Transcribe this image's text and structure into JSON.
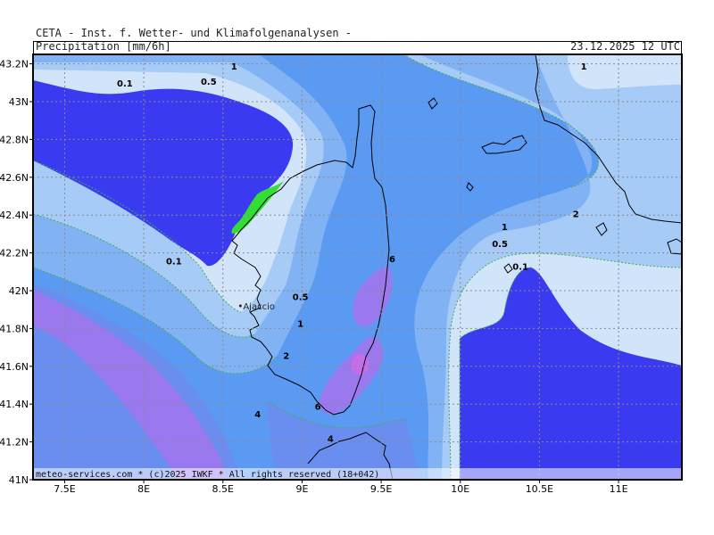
{
  "header": {
    "title": "CETA - Inst. f. Wetter- und Klimafolgenanalysen -",
    "product": "Precipitation [mm/6h]",
    "valid_time": "23.12.2025 12 UTC"
  },
  "axes": {
    "lon_min": 7.3,
    "lon_max": 11.4,
    "lat_min": 41.0,
    "lat_max": 43.25,
    "lon_ticks": [
      {
        "value": 7.5,
        "label": "7.5E"
      },
      {
        "value": 8.0,
        "label": "8E"
      },
      {
        "value": 8.5,
        "label": "8.5E"
      },
      {
        "value": 9.0,
        "label": "9E"
      },
      {
        "value": 9.5,
        "label": "9.5E"
      },
      {
        "value": 10.0,
        "label": "10E"
      },
      {
        "value": 10.5,
        "label": "10.5E"
      },
      {
        "value": 11.0,
        "label": "11E"
      }
    ],
    "lat_ticks": [
      {
        "value": 43.2,
        "label": "43.2N"
      },
      {
        "value": 43.0,
        "label": "43N"
      },
      {
        "value": 42.8,
        "label": "42.8N"
      },
      {
        "value": 42.6,
        "label": "42.6N"
      },
      {
        "value": 42.4,
        "label": "42.4N"
      },
      {
        "value": 42.2,
        "label": "42.2N"
      },
      {
        "value": 42.0,
        "label": "42N"
      },
      {
        "value": 41.8,
        "label": "41.8N"
      },
      {
        "value": 41.6,
        "label": "41.6N"
      },
      {
        "value": 41.4,
        "label": "41.4N"
      },
      {
        "value": 41.2,
        "label": "41.2N"
      },
      {
        "value": 41.0,
        "label": "41N"
      }
    ],
    "grid": true
  },
  "colors": {
    "bg": "#5a9af2",
    "lt01": "#3a3af0",
    "r01": "#d2e4fa",
    "r05": "#a6cbf6",
    "r1": "#80b2f4",
    "r2": "#5a9af2",
    "r4": "#6a8ef0",
    "r6": "#9a78ee",
    "r8": "#c46ee8",
    "green": "#33dd33",
    "coast": "#000000",
    "grid": "#8a8a8a"
  },
  "contour_labels": [
    {
      "lon": 7.88,
      "lat": 43.08,
      "text": "0.1"
    },
    {
      "lon": 8.41,
      "lat": 43.09,
      "text": "0.5"
    },
    {
      "lon": 8.57,
      "lat": 43.17,
      "text": "1"
    },
    {
      "lon": 8.19,
      "lat": 42.14,
      "text": "0.1"
    },
    {
      "lon": 8.99,
      "lat": 41.95,
      "text": "0.5"
    },
    {
      "lon": 8.99,
      "lat": 41.81,
      "text": "1"
    },
    {
      "lon": 8.9,
      "lat": 41.64,
      "text": "2"
    },
    {
      "lon": 8.72,
      "lat": 41.33,
      "text": "4"
    },
    {
      "lon": 9.1,
      "lat": 41.37,
      "text": "6"
    },
    {
      "lon": 9.57,
      "lat": 42.15,
      "text": "6"
    },
    {
      "lon": 9.18,
      "lat": 41.2,
      "text": "4"
    },
    {
      "lon": 10.28,
      "lat": 42.32,
      "text": "1"
    },
    {
      "lon": 10.25,
      "lat": 42.23,
      "text": "0.5"
    },
    {
      "lon": 10.38,
      "lat": 42.11,
      "text": "0.1"
    },
    {
      "lon": 10.73,
      "lat": 42.39,
      "text": "2"
    },
    {
      "lon": 10.78,
      "lat": 43.17,
      "text": "1"
    }
  ],
  "city": {
    "name": "Ajaccio",
    "lon": 8.74,
    "lat": 41.92
  },
  "footer": "meteo-services.com * (c)2025 IWKF * All rights reserved (18+042)"
}
